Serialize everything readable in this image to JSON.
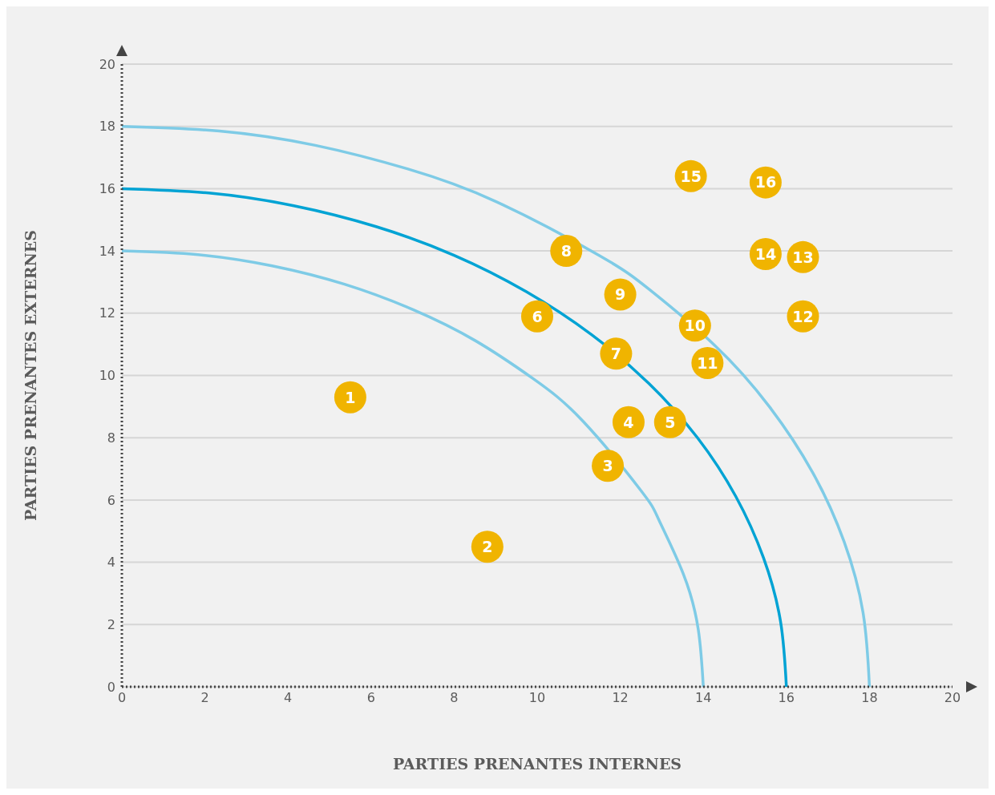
{
  "chart_data": {
    "type": "scatter",
    "xlabel": "PARTIES PRENANTES INTERNES",
    "ylabel": "PARTIES PRENANTES EXTERNES",
    "xlim": [
      0,
      20
    ],
    "ylim": [
      0,
      20
    ],
    "xticks": [
      0,
      2,
      4,
      6,
      8,
      10,
      12,
      14,
      16,
      18,
      20
    ],
    "yticks": [
      0,
      2,
      4,
      6,
      8,
      10,
      12,
      14,
      16,
      18,
      20
    ],
    "grid": "y",
    "marker": "circle",
    "series": [
      {
        "type": "line",
        "color": "#7ecbe6",
        "marker": "none",
        "x": [
          0,
          1.83,
          3.62,
          5.36,
          7.0,
          8.52,
          9.9,
          11.11,
          12.5,
          12.93,
          13.52,
          13.88,
          14
        ],
        "values": [
          14,
          13.88,
          13.52,
          12.93,
          12.12,
          11.11,
          9.9,
          8.52,
          6.3,
          5.36,
          3.62,
          1.83,
          0
        ]
      },
      {
        "type": "line",
        "color": "#00a3d4",
        "marker": "none",
        "x": [
          0,
          2.09,
          4.14,
          6.12,
          8.0,
          9.74,
          11.31,
          12.69,
          13.86,
          14.78,
          15.45,
          15.86,
          16
        ],
        "values": [
          16,
          15.86,
          15.45,
          14.78,
          13.86,
          12.69,
          11.31,
          9.74,
          8.0,
          6.12,
          4.14,
          2.09,
          0
        ]
      },
      {
        "type": "line",
        "color": "#7ecbe6",
        "marker": "none",
        "x": [
          0,
          2.35,
          4.66,
          6.89,
          9.0,
          11.5,
          12.73,
          14.28,
          15.59,
          16.63,
          17.39,
          17.85,
          18
        ],
        "values": [
          18,
          17.85,
          17.39,
          16.63,
          15.59,
          13.85,
          12.73,
          10.96,
          9.0,
          6.89,
          4.66,
          2.35,
          0
        ]
      },
      {
        "color": "#f0b400",
        "x": [
          5.5,
          8.8,
          11.7,
          12.2,
          13.2,
          10.0,
          11.9,
          10.7,
          12.0,
          13.8,
          14.1,
          16.4,
          16.4,
          15.5,
          13.7,
          15.5
        ],
        "values": [
          9.3,
          4.5,
          7.1,
          8.5,
          8.5,
          11.9,
          10.7,
          14.0,
          12.6,
          11.6,
          10.4,
          11.9,
          13.8,
          13.9,
          16.4,
          16.2
        ]
      }
    ],
    "annotations": [
      {
        "text": "1",
        "x": 5.5,
        "y": 9.3
      },
      {
        "text": "2",
        "x": 8.8,
        "y": 4.5
      },
      {
        "text": "3",
        "x": 11.7,
        "y": 7.1
      },
      {
        "text": "4",
        "x": 12.2,
        "y": 8.5
      },
      {
        "text": "5",
        "x": 13.2,
        "y": 8.5
      },
      {
        "text": "6",
        "x": 10.0,
        "y": 11.9
      },
      {
        "text": "7",
        "x": 11.9,
        "y": 10.7
      },
      {
        "text": "8",
        "x": 10.7,
        "y": 14.0
      },
      {
        "text": "9",
        "x": 12.0,
        "y": 12.6
      },
      {
        "text": "10",
        "x": 13.8,
        "y": 11.6
      },
      {
        "text": "11",
        "x": 14.1,
        "y": 10.4
      },
      {
        "text": "12",
        "x": 16.4,
        "y": 11.9
      },
      {
        "text": "13",
        "x": 16.4,
        "y": 13.8
      },
      {
        "text": "14",
        "x": 15.5,
        "y": 13.9
      },
      {
        "text": "15",
        "x": 13.7,
        "y": 16.4
      },
      {
        "text": "16",
        "x": 15.5,
        "y": 16.2
      }
    ]
  }
}
